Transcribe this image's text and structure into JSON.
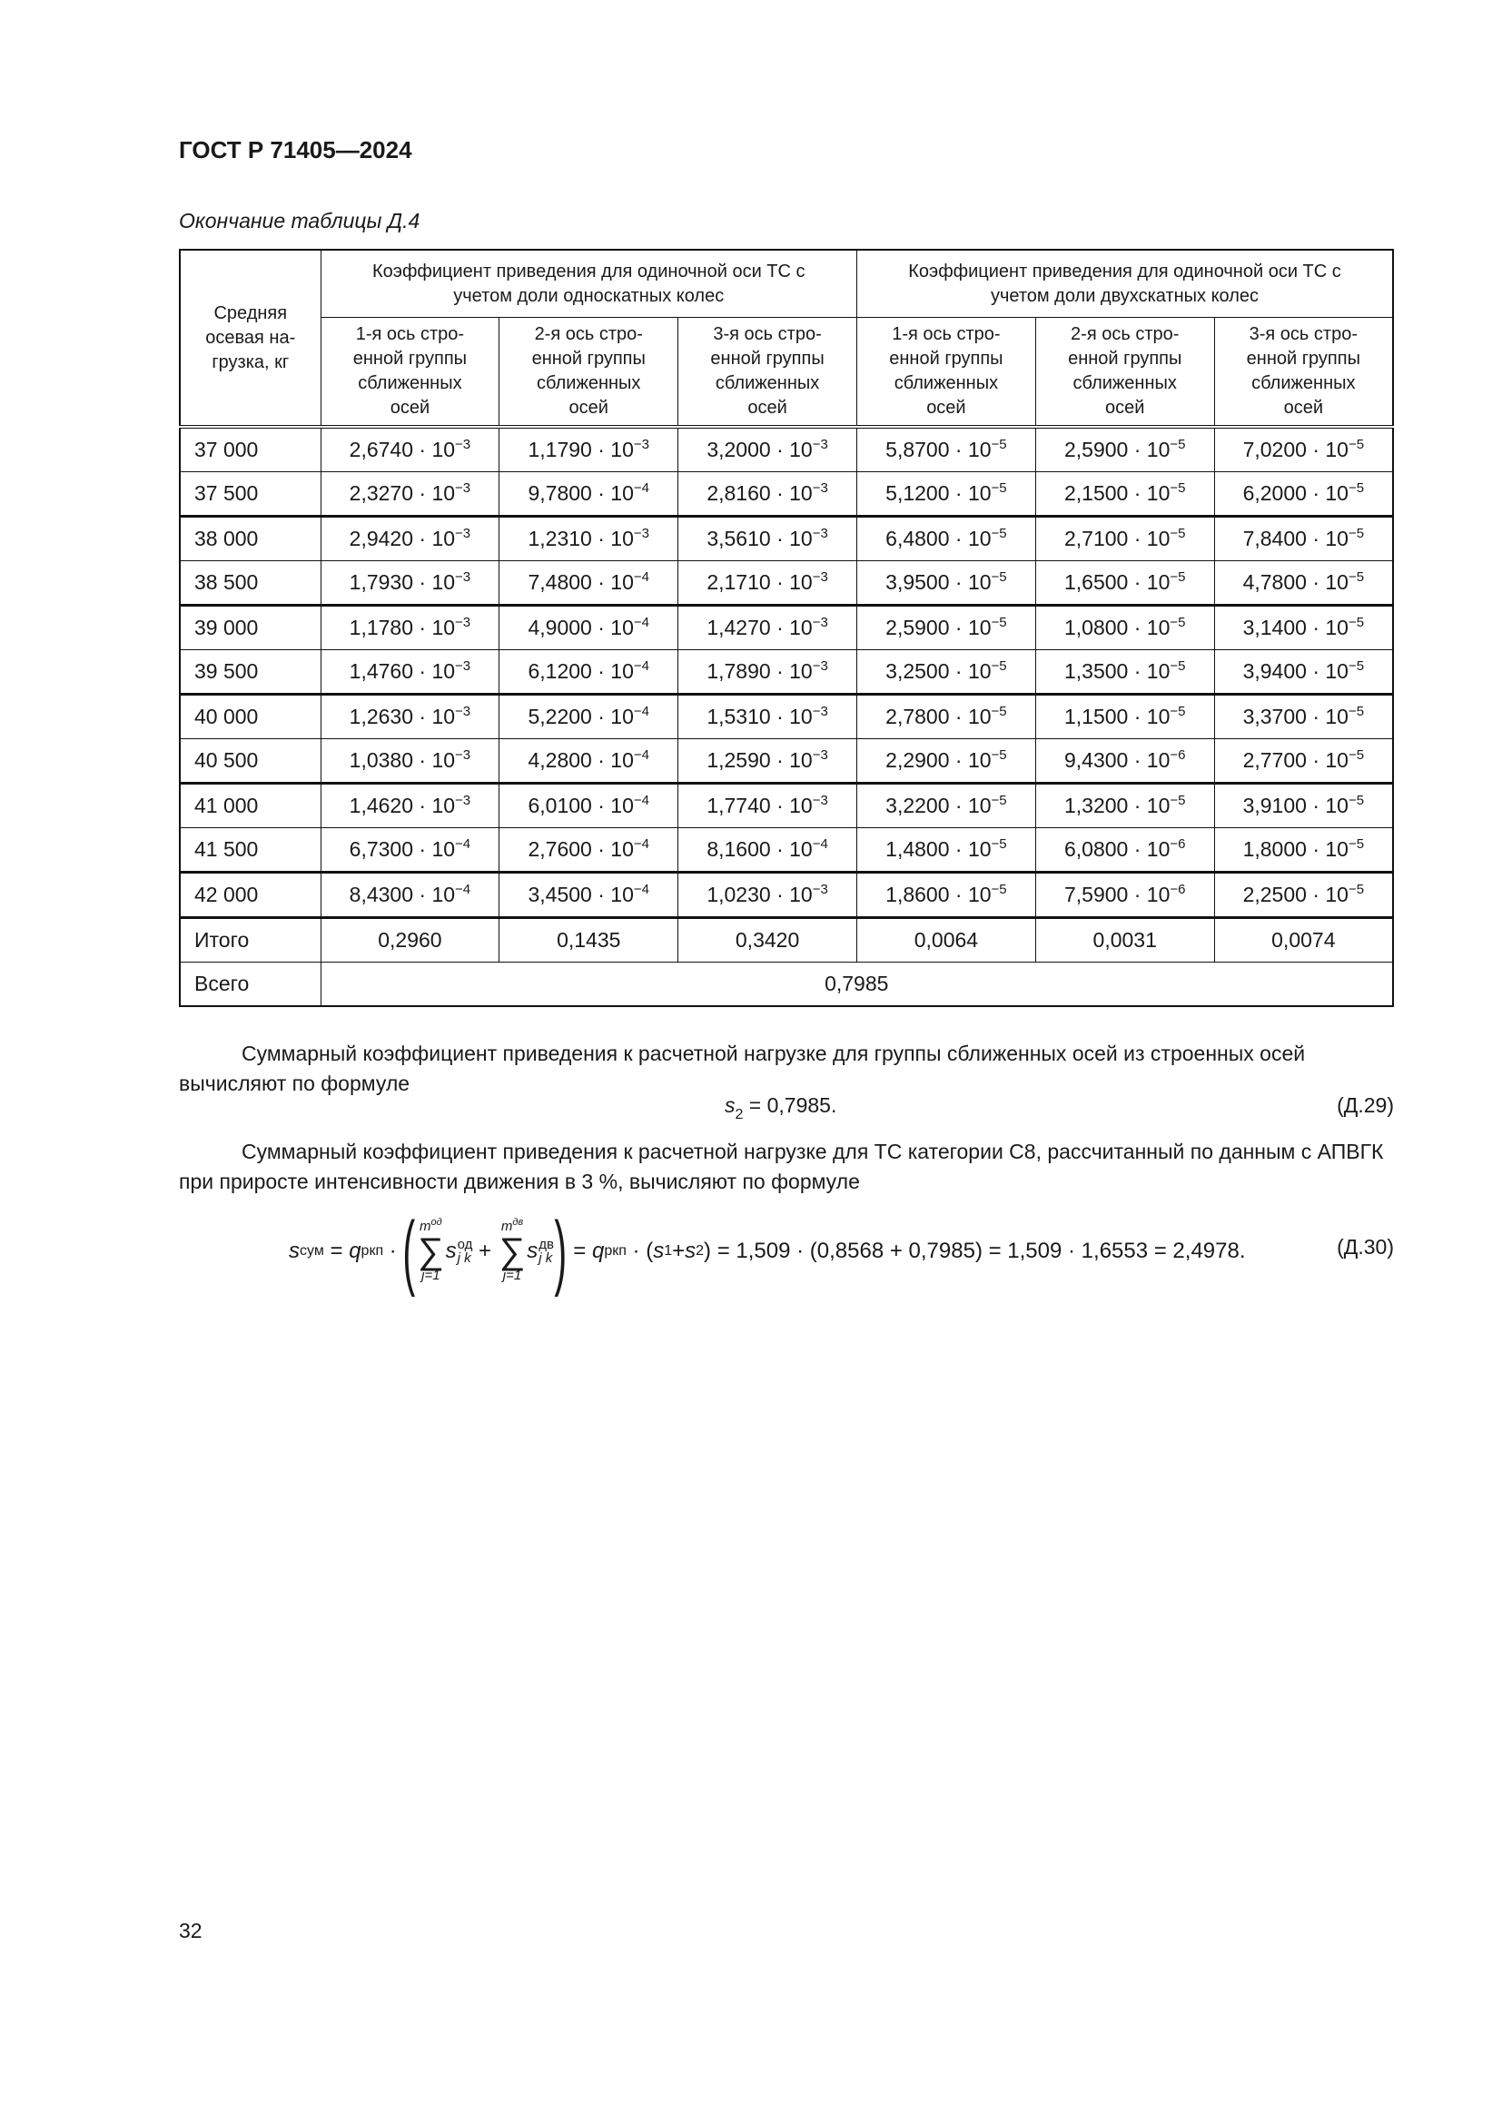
{
  "header": {
    "title": "ГОСТ Р 71405—2024"
  },
  "table_caption": "Окончание таблицы Д.4",
  "table": {
    "row_header": "Средняя осевая на-грузка, кг",
    "group_headers": [
      "Коэффициент приведения для одиночной оси ТС с учетом доли односкатных колес",
      "Коэффициент приведения для одиночной оси ТС с учетом доли двухскатных колес"
    ],
    "sub_headers": [
      "1-я ось стро-енной группы сближенных осей",
      "2-я ось стро-енной группы сближенных осей",
      "3-я ось стро-енной группы сближенных осей",
      "1-я ось стро-енной группы сближенных осей",
      "2-я ось стро-енной группы сближенных осей",
      "3-я ось стро-енной группы сближенных осей"
    ],
    "rows": [
      {
        "load": "37 000",
        "cells": [
          [
            "2,6740 · 10",
            "−3"
          ],
          [
            "1,1790 · 10",
            "−3"
          ],
          [
            "3,2000 · 10",
            "−3"
          ],
          [
            "5,8700 · 10",
            "−5"
          ],
          [
            "2,5900 · 10",
            "−5"
          ],
          [
            "7,0200 · 10",
            "−5"
          ]
        ]
      },
      {
        "load": "37 500",
        "cells": [
          [
            "2,3270 · 10",
            "−3"
          ],
          [
            "9,7800 · 10",
            "−4"
          ],
          [
            "2,8160 · 10",
            "−3"
          ],
          [
            "5,1200 · 10",
            "−5"
          ],
          [
            "2,1500 · 10",
            "−5"
          ],
          [
            "6,2000 · 10",
            "−5"
          ]
        ]
      },
      {
        "load": "38 000",
        "cells": [
          [
            "2,9420 · 10",
            "−3"
          ],
          [
            "1,2310 · 10",
            "−3"
          ],
          [
            "3,5610 · 10",
            "−3"
          ],
          [
            "6,4800 · 10",
            "−5"
          ],
          [
            "2,7100 · 10",
            "−5"
          ],
          [
            "7,8400 · 10",
            "−5"
          ]
        ]
      },
      {
        "load": "38 500",
        "cells": [
          [
            "1,7930 · 10",
            "−3"
          ],
          [
            "7,4800 · 10",
            "−4"
          ],
          [
            "2,1710 · 10",
            "−3"
          ],
          [
            "3,9500 · 10",
            "−5"
          ],
          [
            "1,6500 · 10",
            "−5"
          ],
          [
            "4,7800 · 10",
            "−5"
          ]
        ]
      },
      {
        "load": "39 000",
        "cells": [
          [
            "1,1780 · 10",
            "−3"
          ],
          [
            "4,9000 · 10",
            "−4"
          ],
          [
            "1,4270 · 10",
            "−3"
          ],
          [
            "2,5900 · 10",
            "−5"
          ],
          [
            "1,0800 · 10",
            "−5"
          ],
          [
            "3,1400 · 10",
            "−5"
          ]
        ]
      },
      {
        "load": "39 500",
        "cells": [
          [
            "1,4760 · 10",
            "−3"
          ],
          [
            "6,1200 · 10",
            "−4"
          ],
          [
            "1,7890 · 10",
            "−3"
          ],
          [
            "3,2500 · 10",
            "−5"
          ],
          [
            "1,3500 · 10",
            "−5"
          ],
          [
            "3,9400 · 10",
            "−5"
          ]
        ]
      },
      {
        "load": "40 000",
        "cells": [
          [
            "1,2630 · 10",
            "−3"
          ],
          [
            "5,2200 · 10",
            "−4"
          ],
          [
            "1,5310 · 10",
            "−3"
          ],
          [
            "2,7800 · 10",
            "−5"
          ],
          [
            "1,1500 · 10",
            "−5"
          ],
          [
            "3,3700 · 10",
            "−5"
          ]
        ]
      },
      {
        "load": "40 500",
        "cells": [
          [
            "1,0380 · 10",
            "−3"
          ],
          [
            "4,2800 · 10",
            "−4"
          ],
          [
            "1,2590 · 10",
            "−3"
          ],
          [
            "2,2900 · 10",
            "−5"
          ],
          [
            "9,4300 · 10",
            "−6"
          ],
          [
            "2,7700 · 10",
            "−5"
          ]
        ]
      },
      {
        "load": "41 000",
        "cells": [
          [
            "1,4620 · 10",
            "−3"
          ],
          [
            "6,0100 · 10",
            "−4"
          ],
          [
            "1,7740 · 10",
            "−3"
          ],
          [
            "3,2200 · 10",
            "−5"
          ],
          [
            "1,3200 · 10",
            "−5"
          ],
          [
            "3,9100 · 10",
            "−5"
          ]
        ]
      },
      {
        "load": "41 500",
        "cells": [
          [
            "6,7300 · 10",
            "−4"
          ],
          [
            "2,7600 · 10",
            "−4"
          ],
          [
            "8,1600 · 10",
            "−4"
          ],
          [
            "1,4800 · 10",
            "−5"
          ],
          [
            "6,0800 · 10",
            "−6"
          ],
          [
            "1,8000 · 10",
            "−5"
          ]
        ]
      },
      {
        "load": "42 000",
        "cells": [
          [
            "8,4300 · 10",
            "−4"
          ],
          [
            "3,4500 · 10",
            "−4"
          ],
          [
            "1,0230 · 10",
            "−3"
          ],
          [
            "1,8600 · 10",
            "−5"
          ],
          [
            "7,5900 · 10",
            "−6"
          ],
          [
            "2,2500 · 10",
            "−5"
          ]
        ]
      }
    ],
    "subtotal": {
      "label": "Итого",
      "values": [
        "0,2960",
        "0,1435",
        "0,3420",
        "0,0064",
        "0,0031",
        "0,0074"
      ]
    },
    "total": {
      "label": "Всего",
      "value": "0,7985"
    }
  },
  "para1": "Суммарный коэффициент приведения к расчетной нагрузке для группы сближенных осей из строенных осей вычисляют по формуле",
  "formula29": {
    "lhs": "s",
    "lhs_sub": "2",
    "rhs": " = 0,7985.",
    "number": "(Д.29)"
  },
  "para2": "Суммарный коэффициент приведения к расчетной нагрузке для ТС категории С8, рассчитанный по данным с АПВГК при приросте интенсивности движения в 3 %, вычисляют по формуле",
  "formula30": {
    "s": "s",
    "s_sub": "сум",
    "eq": " = ",
    "q": "q",
    "q_sub": "ркп",
    "dot": " · ",
    "sum1_upper": "m",
    "sum1_upper_sup": "од",
    "sum_lower": "j=1",
    "sigma": "∑",
    "term1_sup": "од",
    "term1_sub": "j k",
    "plus": " + ",
    "sum2_upper_sup": "дв",
    "term2_sup": "дв",
    "term2_sub": "j k",
    "middle": " = ",
    "s1_sub": "1",
    "s2_sub": "2",
    "tail": " = 1,509 · (0,8568 + 0,7985) = 1,509 · 1,6553 = 2,4978.",
    "open_paren": "(",
    "close_paren": ")",
    "number": "(Д.30)"
  },
  "page_number": "32"
}
